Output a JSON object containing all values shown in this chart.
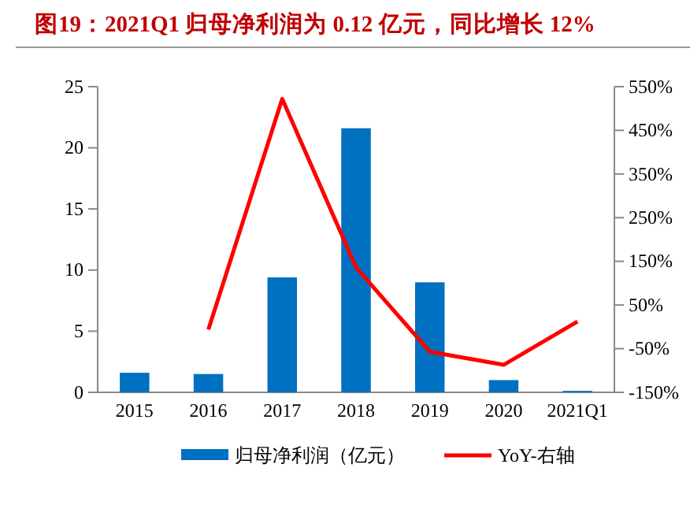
{
  "chart_data": {
    "type": "bar",
    "title": "图19：2021Q1 归母净利润为 0.12 亿元，同比增长 12%",
    "categories": [
      "2015",
      "2016",
      "2017",
      "2018",
      "2019",
      "2020",
      "2021Q1"
    ],
    "series": [
      {
        "name": "归母净利润（亿元）",
        "color": "#0070c0",
        "values": [
          1.6,
          1.5,
          9.4,
          21.6,
          9.0,
          1.0,
          0.12
        ]
      },
      {
        "name": "YoY-右轴",
        "type": "line",
        "axis": "y2",
        "color": "#ff0000",
        "values": [
          null,
          -6,
          522,
          136,
          -57,
          -87,
          12
        ]
      }
    ],
    "ylim": [
      0,
      25
    ],
    "yticks": [
      0,
      5,
      10,
      15,
      20,
      25
    ],
    "y2lim": [
      -150,
      550
    ],
    "y2ticks": [
      {
        "value": -150,
        "label": "-150%"
      },
      {
        "value": -50,
        "label": "-50%"
      },
      {
        "value": 50,
        "label": "50%"
      },
      {
        "value": 150,
        "label": "150%"
      },
      {
        "value": 250,
        "label": "250%"
      },
      {
        "value": 350,
        "label": "350%"
      },
      {
        "value": 450,
        "label": "450%"
      },
      {
        "value": 550,
        "label": "550%"
      }
    ],
    "grid": false,
    "legend": "bottom"
  }
}
